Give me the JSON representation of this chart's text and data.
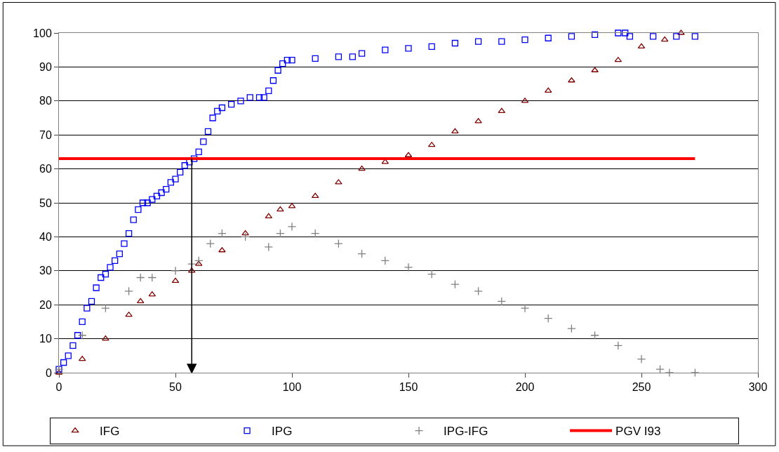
{
  "chart_data": {
    "type": "scatter",
    "xlim": [
      0,
      300
    ],
    "xticks": [
      0,
      50,
      100,
      150,
      200,
      250,
      300
    ],
    "ylim": [
      0,
      100
    ],
    "yticks": [
      0,
      10,
      20,
      30,
      40,
      50,
      60,
      70,
      80,
      90,
      100
    ],
    "grid": "y",
    "legend": "bottom",
    "series": [
      {
        "name": "IFG",
        "marker": "triangle",
        "color": "#800000",
        "x": [
          0,
          10,
          20,
          30,
          35,
          40,
          50,
          57,
          60,
          70,
          80,
          90,
          95,
          100,
          110,
          120,
          130,
          140,
          150,
          160,
          170,
          180,
          190,
          200,
          210,
          220,
          230,
          240,
          250,
          260,
          267
        ],
        "values": [
          0,
          4,
          10,
          17,
          21,
          23,
          27,
          30,
          32,
          36,
          41,
          46,
          48,
          49,
          52,
          56,
          60,
          62,
          64,
          67,
          71,
          74,
          77,
          80,
          83,
          86,
          89,
          92,
          96,
          98,
          100
        ]
      },
      {
        "name": "IPG",
        "marker": "square",
        "color": "#0000ff",
        "x": [
          0,
          2,
          4,
          6,
          8,
          10,
          12,
          14,
          16,
          18,
          20,
          22,
          24,
          26,
          28,
          30,
          32,
          34,
          36,
          38,
          40,
          42,
          44,
          46,
          48,
          50,
          52,
          54,
          56,
          58,
          60,
          62,
          64,
          66,
          68,
          70,
          74,
          78,
          82,
          86,
          88,
          90,
          92,
          94,
          96,
          98,
          100,
          110,
          120,
          126,
          130,
          140,
          150,
          160,
          170,
          180,
          190,
          200,
          210,
          220,
          230,
          240,
          243,
          245,
          255,
          265,
          273
        ],
        "values": [
          1,
          3,
          5,
          8,
          11,
          15,
          19,
          21,
          25,
          28,
          29,
          31,
          33,
          35,
          38,
          41,
          45,
          48,
          50,
          50,
          51,
          52,
          53,
          54,
          56,
          57,
          59,
          61,
          62,
          63,
          65,
          68,
          71,
          75,
          77,
          78,
          79,
          80,
          81,
          81,
          81,
          83,
          86,
          89,
          91,
          92,
          92,
          92.5,
          93,
          93,
          94,
          95,
          95.5,
          96,
          97,
          97.5,
          97.5,
          98,
          98.5,
          99,
          99.5,
          100,
          100,
          99,
          99,
          99,
          99
        ]
      },
      {
        "name": "IPG-IFG",
        "marker": "cross",
        "color": "#808080",
        "x": [
          0,
          10,
          20,
          30,
          35,
          40,
          50,
          57,
          60,
          65,
          70,
          80,
          90,
          95,
          100,
          110,
          120,
          130,
          140,
          150,
          160,
          170,
          180,
          190,
          200,
          210,
          220,
          230,
          240,
          250,
          258,
          262,
          273
        ],
        "values": [
          1,
          11,
          19,
          24,
          28,
          28,
          30,
          32,
          33,
          38,
          41,
          40,
          37,
          41,
          43,
          41,
          38,
          35,
          33,
          31,
          29,
          26,
          24,
          21,
          19,
          16,
          13,
          11,
          8,
          4,
          1,
          0,
          0
        ]
      },
      {
        "name": "PGV I93",
        "type": "line",
        "marker": "none",
        "color": "#ff0000",
        "x": [
          0,
          273
        ],
        "values": [
          63,
          63
        ]
      }
    ],
    "ref_lines": [
      {
        "axis": "x",
        "value": 57,
        "color": "#000000"
      }
    ]
  }
}
